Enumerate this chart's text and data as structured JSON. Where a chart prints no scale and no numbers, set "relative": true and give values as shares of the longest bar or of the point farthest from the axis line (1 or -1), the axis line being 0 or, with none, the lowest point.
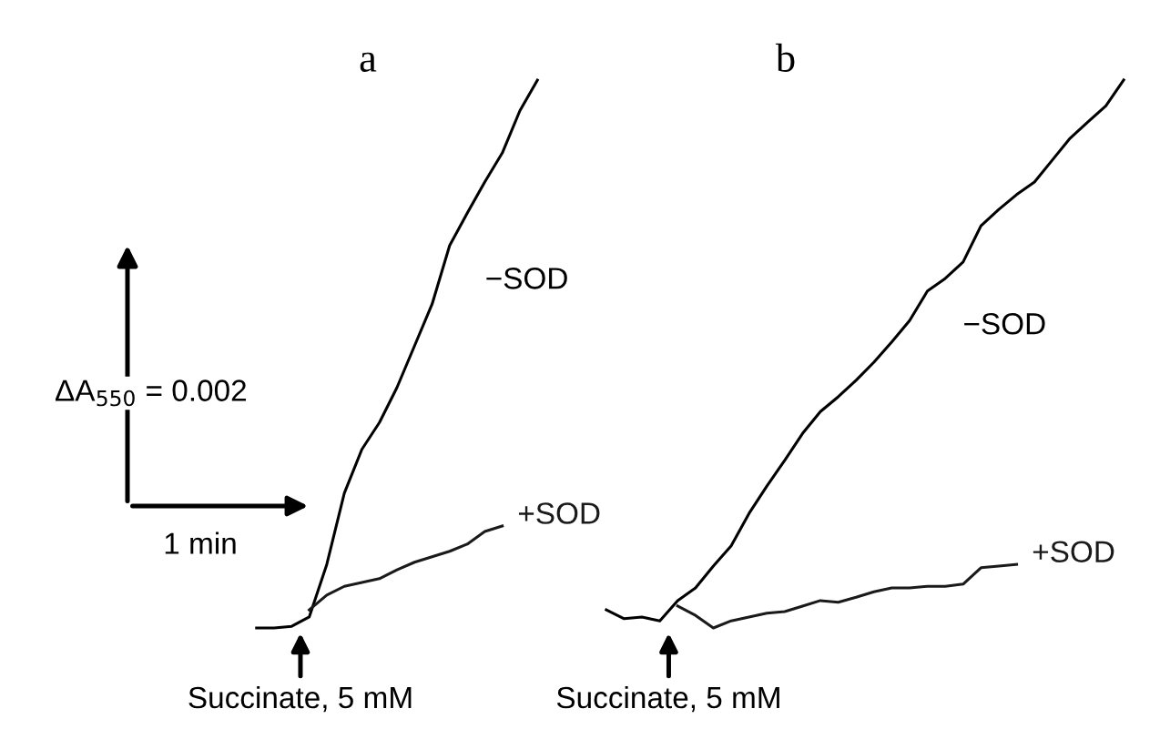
{
  "chart_data": [
    {
      "type": "line",
      "title": "a",
      "relative": true,
      "categories": [
        null,
        null,
        null,
        null,
        null,
        null,
        null,
        null,
        null,
        null,
        null,
        null,
        null,
        null,
        null,
        null,
        null
      ],
      "series": [
        {
          "name": "−SOD",
          "color": "#000000",
          "values": [
            0,
            0,
            0.003,
            0.02,
            0.116,
            0.246,
            0.326,
            0.375,
            0.439,
            0.515,
            0.591,
            0.698,
            0.757,
            0.814,
            0.867,
            0.944,
            1
          ]
        },
        {
          "name": "+SOD",
          "color": "#1a1a1a",
          "values": [
            null,
            null,
            null,
            0.033,
            0.06,
            0.076,
            0.083,
            0.09,
            0.106,
            0.12,
            0.13,
            0.14,
            0.153,
            0.176,
            0.186,
            null,
            null
          ]
        }
      ],
      "annotations": [
        "ΔA$_{550}$ = 0.002",
        "1 min",
        "Succinate, 5 mM"
      ]
    },
    {
      "type": "line",
      "title": "b",
      "relative": true,
      "categories": [
        null,
        null,
        null,
        null,
        null,
        null,
        null,
        null,
        null,
        null,
        null,
        null,
        null,
        null,
        null,
        null,
        null,
        null,
        null,
        null,
        null,
        null,
        null,
        null,
        null,
        null,
        null,
        null,
        null,
        null
      ],
      "series": [
        {
          "name": "−SOD",
          "color": "#000000",
          "values": [
            0.033,
            0.017,
            0.02,
            0.013,
            0.05,
            0.073,
            0.113,
            0.15,
            0.209,
            0.259,
            0.306,
            0.355,
            0.395,
            0.422,
            0.452,
            0.485,
            0.522,
            0.561,
            0.615,
            0.638,
            0.668,
            0.734,
            0.764,
            0.791,
            0.814,
            0.854,
            0.894,
            0.924,
            0.953,
            1
          ]
        },
        {
          "name": "+SOD",
          "color": "#1a1a1a",
          "values": [
            null,
            null,
            null,
            null,
            0.04,
            0.023,
            0,
            0.013,
            0.02,
            0.027,
            0.03,
            0.04,
            0.05,
            0.047,
            0.056,
            0.066,
            0.073,
            0.073,
            0.076,
            0.076,
            0.08,
            0.11,
            0.113,
            0.116,
            null,
            null,
            null,
            null,
            null,
            null
          ]
        }
      ],
      "annotations": [
        "Succinate, 5 mM"
      ]
    }
  ]
}
